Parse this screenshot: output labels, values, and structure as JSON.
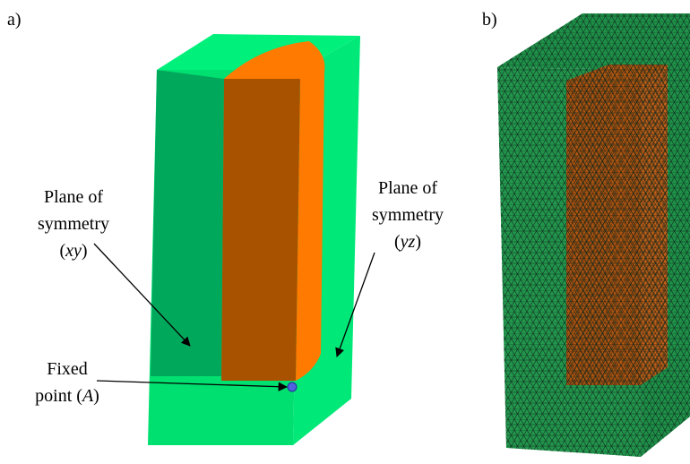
{
  "panels": [
    {
      "label": "a)",
      "annotations": [
        {
          "lines": [
            "Plane of",
            "symmetry",
            [
              "(",
              "xy",
              ")"
            ]
          ]
        },
        {
          "lines": [
            "Plane of",
            "symmetry",
            [
              "(",
              "yz",
              ")"
            ]
          ]
        },
        {
          "lines": [
            "Fixed",
            [
              "point (",
              "A",
              ")"
            ]
          ]
        }
      ]
    },
    {
      "label": "b)"
    }
  ]
}
